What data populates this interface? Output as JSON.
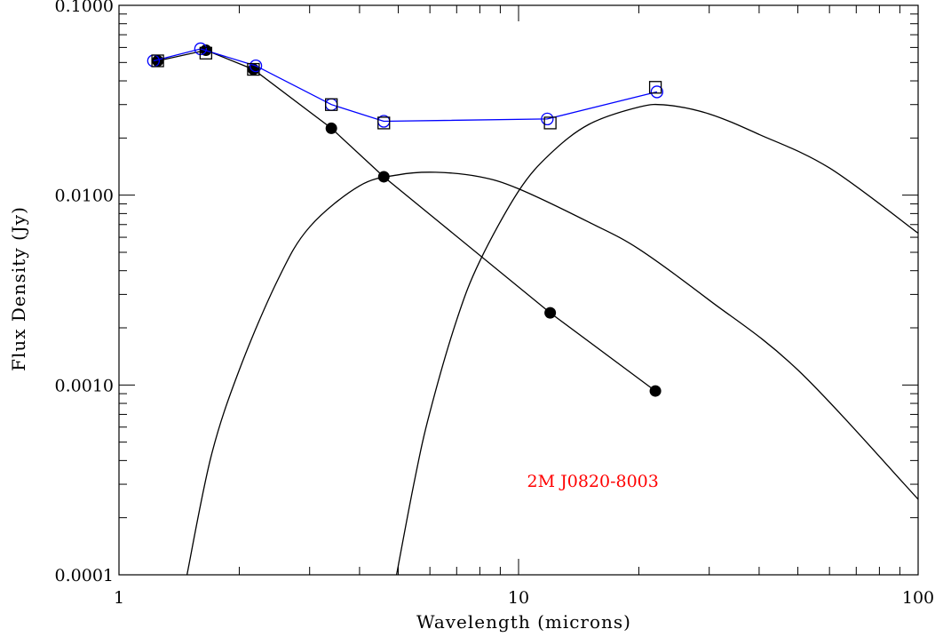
{
  "chart_data": {
    "type": "line",
    "xscale": "log",
    "yscale": "log",
    "xlim": [
      1,
      100
    ],
    "ylim": [
      0.0001,
      0.1
    ],
    "xlabel": "Wavelength (microns)",
    "ylabel": "Flux Density (Jy)",
    "x_tick_labels": [
      {
        "value": 1,
        "label": "1"
      },
      {
        "value": 10,
        "label": "10"
      },
      {
        "value": 100,
        "label": "100"
      }
    ],
    "y_tick_labels": [
      {
        "value": 0.0001,
        "label": "0.0001"
      },
      {
        "value": 0.001,
        "label": "0.0010"
      },
      {
        "value": 0.01,
        "label": "0.0100"
      },
      {
        "value": 0.1,
        "label": "0.1000"
      }
    ],
    "annotation": {
      "text": "2M J0820-8003",
      "x": 10.5,
      "y": 0.00031,
      "color": "#ff0000"
    },
    "series": [
      {
        "style": "filled-circles-line",
        "color": "#000000",
        "x": [
          1.25,
          1.65,
          2.17,
          3.4,
          4.6,
          12.0,
          22.0
        ],
        "y": [
          0.051,
          0.058,
          0.046,
          0.0225,
          0.0125,
          0.0024,
          0.00093
        ]
      },
      {
        "style": "open-circles-line",
        "color": "#0000ff",
        "x": [
          1.22,
          1.6,
          2.2,
          3.4,
          4.6,
          11.8,
          22.2
        ],
        "y": [
          0.051,
          0.059,
          0.048,
          0.03,
          0.0245,
          0.0252,
          0.035
        ]
      },
      {
        "style": "open-squares",
        "color": "#000000",
        "x": [
          1.25,
          1.65,
          2.17,
          3.4,
          4.6,
          12.0,
          22.0
        ],
        "y": [
          0.051,
          0.056,
          0.046,
          0.03,
          0.024,
          0.024,
          0.037
        ]
      },
      {
        "style": "curve",
        "color": "#000000",
        "x": [
          1.48,
          1.7,
          2.0,
          2.5,
          3.0,
          4.0,
          5.0,
          6.2,
          8.0,
          10.0,
          15.0,
          20.0,
          30.0,
          50.0,
          100.0
        ],
        "y": [
          0.0001,
          0.00042,
          0.0012,
          0.0036,
          0.0068,
          0.0112,
          0.0128,
          0.0132,
          0.0125,
          0.0108,
          0.0072,
          0.0052,
          0.0028,
          0.0012,
          0.00025
        ]
      },
      {
        "style": "curve",
        "color": "#000000",
        "x": [
          4.95,
          5.5,
          6.0,
          7.0,
          8.0,
          10.0,
          12.0,
          15.0,
          20.0,
          23.5,
          30.0,
          40.0,
          60.0,
          100.0
        ],
        "y": [
          0.0001,
          0.00032,
          0.00072,
          0.0022,
          0.0045,
          0.0105,
          0.0165,
          0.0236,
          0.0291,
          0.0298,
          0.0268,
          0.0209,
          0.0139,
          0.0063
        ]
      }
    ]
  }
}
